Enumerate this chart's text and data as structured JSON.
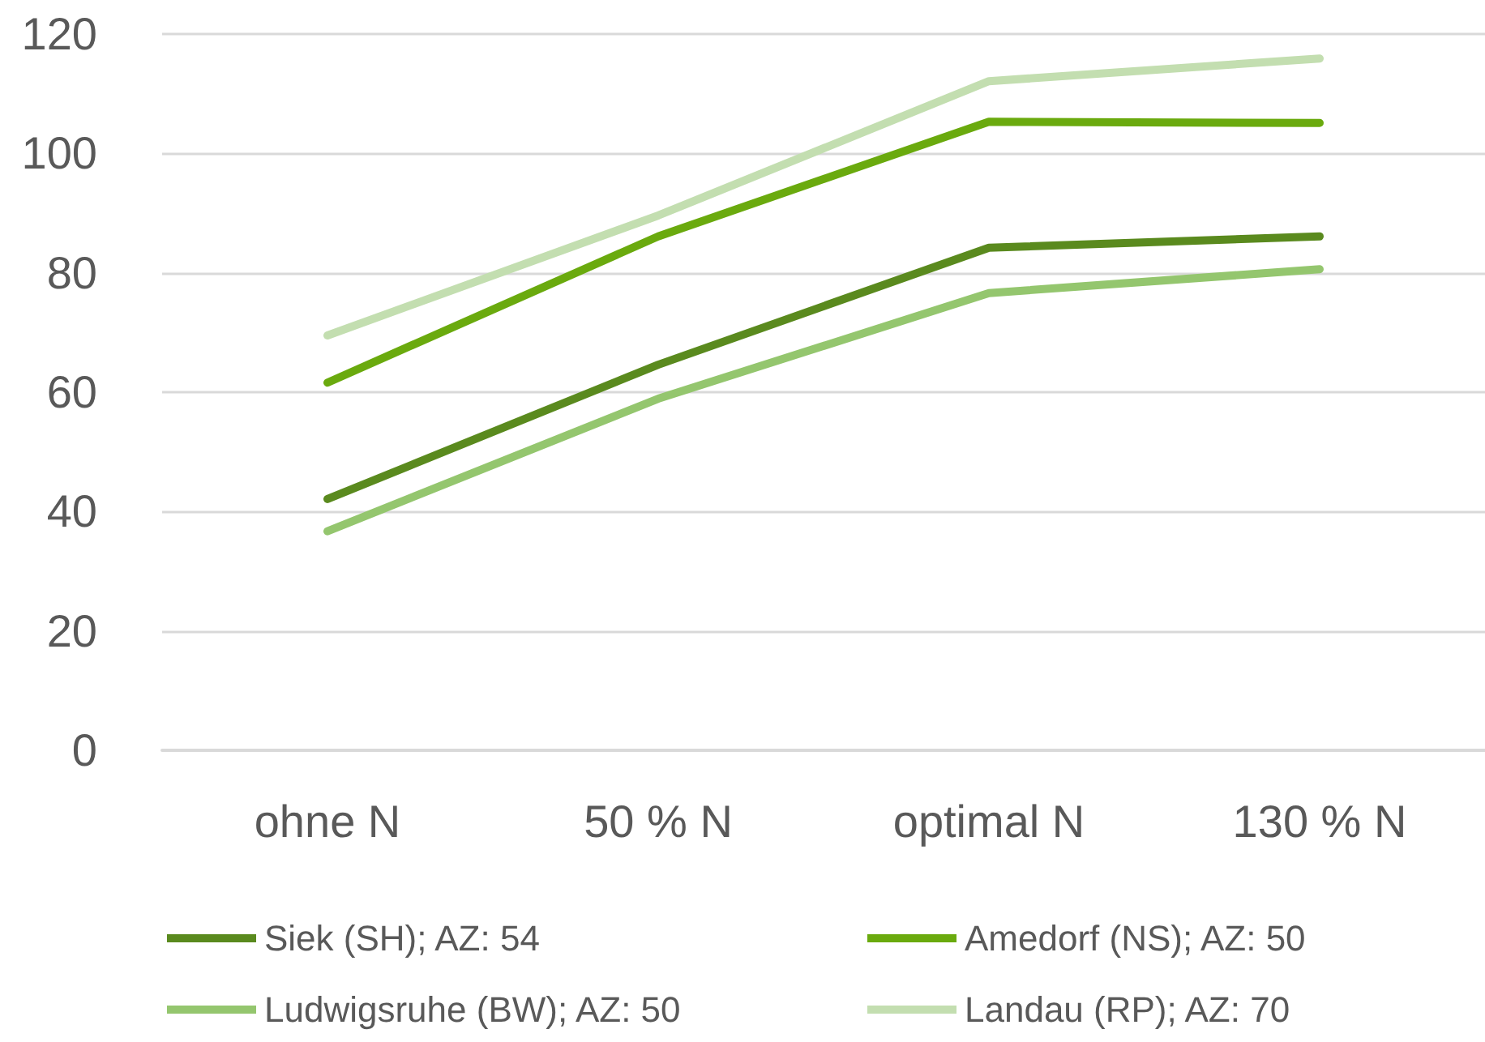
{
  "chart_data": {
    "type": "line",
    "categories": [
      "ohne N",
      "50 % N",
      "optimal N",
      "130 % N"
    ],
    "series": [
      {
        "name": "Siek (SH); AZ: 54",
        "color": "#5a8a1e",
        "values": [
          42.1,
          64.6,
          84.2,
          86.1
        ]
      },
      {
        "name": "Amedorf (NS); AZ: 50",
        "color": "#6aaa0e",
        "values": [
          61.6,
          86.1,
          105.3,
          105.1
        ]
      },
      {
        "name": "Ludwigsruhe (BW); AZ: 50",
        "color": "#94c66e",
        "values": [
          36.7,
          58.9,
          76.6,
          80.6
        ]
      },
      {
        "name": "Landau (RP); AZ: 70",
        "color": "#c3deb0",
        "values": [
          69.5,
          89.6,
          112.1,
          115.9
        ]
      }
    ],
    "ylim": [
      0,
      120
    ],
    "yticks": [
      0,
      20,
      40,
      60,
      80,
      100,
      120
    ],
    "grid": "y",
    "legend": "bottom",
    "marker": "none",
    "line_style": "solid"
  }
}
